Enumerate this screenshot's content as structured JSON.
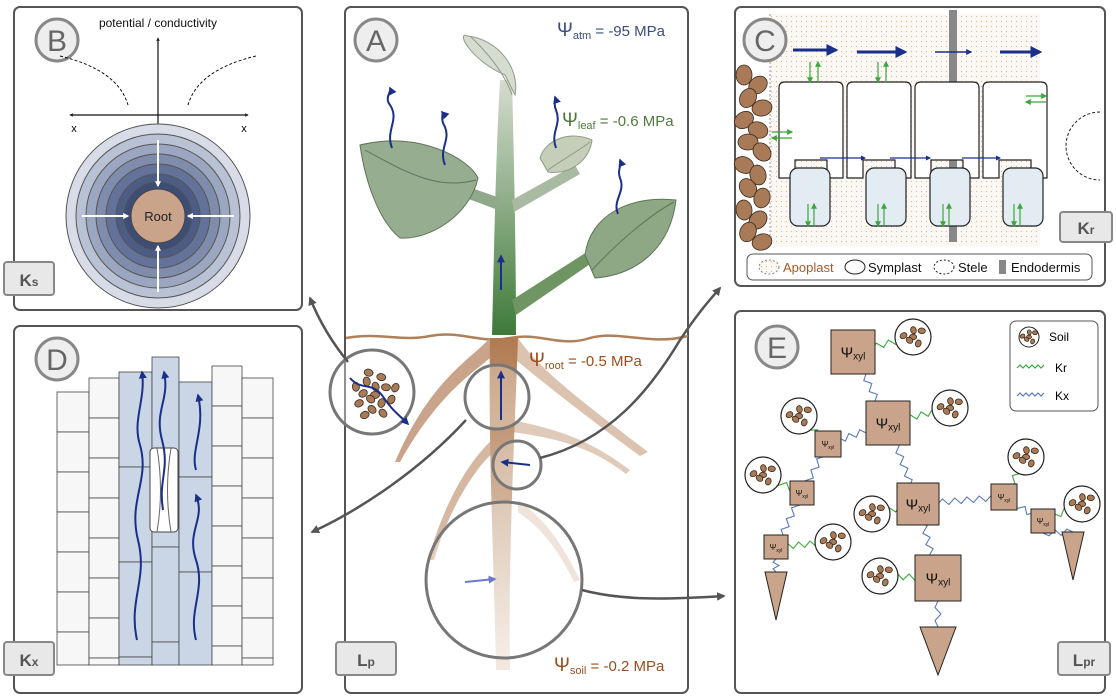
{
  "panels": {
    "A": {
      "letter": "A",
      "badge": "L",
      "badge_sub": "p",
      "psi_atm": {
        "sym": "Ψ",
        "sub": "atm",
        "value": " = -95 MPa"
      },
      "psi_leaf": {
        "sym": "Ψ",
        "sub": "leaf",
        "value": " = -0.6 MPa"
      },
      "psi_root": {
        "sym": "Ψ",
        "sub": "root",
        "value": " = -0.5 MPa"
      },
      "psi_soil": {
        "sym": "Ψ",
        "sub": "soil",
        "value": " = -0.2 MPa"
      }
    },
    "B": {
      "letter": "B",
      "badge": "K",
      "badge_sub": "s",
      "axis_label": "potential / conductivity",
      "x_left": "x",
      "x_right": "x",
      "center_label": "Root"
    },
    "C": {
      "letter": "C",
      "badge": "K",
      "badge_sub": "r",
      "legend": [
        "Apoplast",
        "Symplast",
        "Stele",
        "Endodermis"
      ]
    },
    "D": {
      "letter": "D",
      "badge": "K",
      "badge_sub": "x"
    },
    "E": {
      "letter": "E",
      "badge": "L",
      "badge_sub": "pr",
      "node_sym": "Ψ",
      "node_sub": "xyl",
      "legend": [
        "Soil",
        "Kr",
        "Kx"
      ]
    }
  },
  "colors": {
    "leaf": "#95ae8c",
    "root": "#c9a48a",
    "flow_arrow": "#1a2f8a",
    "green_arrow": "#3aa83a",
    "psi_atm": "#3b4f7a",
    "psi_leaf": "#4f7a3c",
    "psi_root": "#9a4e1e",
    "psi_soil": "#9a4e1e",
    "apoplast": "#a85a2a",
    "soil": "#a87a58",
    "node": "#c9a48a",
    "ring_dark": "#3d5078",
    "ring_light": "#d8dce6"
  }
}
